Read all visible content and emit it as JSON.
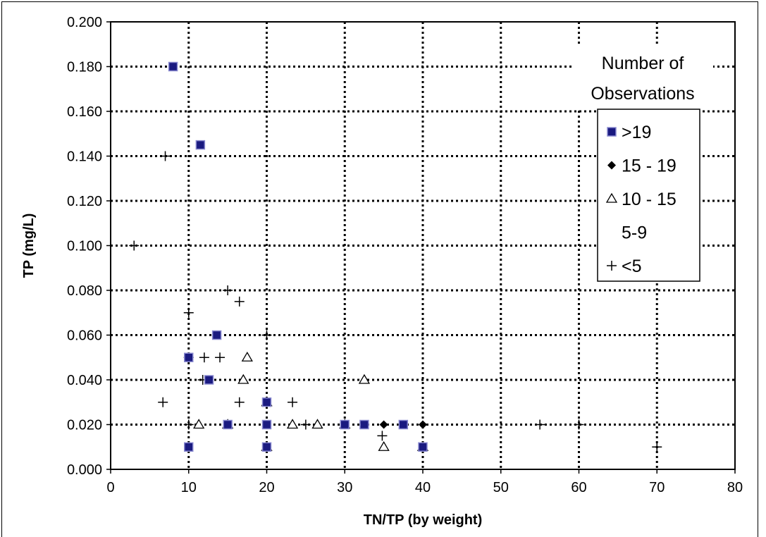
{
  "chart_data": {
    "type": "scatter",
    "xlabel": "TN/TP (by weight)",
    "ylabel": "TP (mg/L)",
    "xlim": [
      0,
      80
    ],
    "ylim": [
      0,
      0.2
    ],
    "x_ticks": [
      "0",
      "10",
      "20",
      "30",
      "40",
      "50",
      "60",
      "70",
      "80"
    ],
    "y_ticks": [
      "0.000",
      "0.020",
      "0.040",
      "0.060",
      "0.080",
      "0.100",
      "0.120",
      "0.140",
      "0.160",
      "0.180",
      "0.200"
    ],
    "grid": true,
    "legend_title": "Number of Observations",
    "legend_title_lines": [
      "Number of",
      "Observations"
    ],
    "legend_placement": "right",
    "series": [
      {
        "name": ">19",
        "marker": "square",
        "color": "#1a1a80",
        "points": [
          [
            8,
            0.18
          ],
          [
            11.5,
            0.145
          ],
          [
            13.6,
            0.06
          ],
          [
            10,
            0.05
          ],
          [
            12.6,
            0.04
          ],
          [
            20,
            0.03
          ],
          [
            15,
            0.02
          ],
          [
            20,
            0.02
          ],
          [
            30,
            0.02
          ],
          [
            32.5,
            0.02
          ],
          [
            37.5,
            0.02
          ],
          [
            10,
            0.01
          ],
          [
            20,
            0.01
          ],
          [
            40,
            0.01
          ]
        ]
      },
      {
        "name": "15 - 19",
        "marker": "diamond",
        "color": "#000000",
        "points": [
          [
            35,
            0.02
          ],
          [
            40,
            0.02
          ]
        ]
      },
      {
        "name": "10 - 15",
        "marker": "triangle",
        "color": "#000000",
        "points": [
          [
            17.5,
            0.05
          ],
          [
            17,
            0.04
          ],
          [
            32.5,
            0.04
          ],
          [
            20,
            0.03
          ],
          [
            11.3,
            0.02
          ],
          [
            15,
            0.02
          ],
          [
            23.3,
            0.02
          ],
          [
            26.5,
            0.02
          ],
          [
            30,
            0.02
          ],
          [
            20,
            0.01
          ],
          [
            35,
            0.01
          ],
          [
            40,
            0.01
          ]
        ]
      },
      {
        "name": "5-9",
        "marker": "none",
        "color": "#000000",
        "points": []
      },
      {
        "name": "<5",
        "marker": "plus",
        "color": "#000000",
        "points": [
          [
            7,
            0.14
          ],
          [
            3,
            0.1
          ],
          [
            15,
            0.08
          ],
          [
            16.5,
            0.075
          ],
          [
            10,
            0.07
          ],
          [
            20,
            0.06
          ],
          [
            10,
            0.05
          ],
          [
            12,
            0.05
          ],
          [
            14,
            0.05
          ],
          [
            11.8,
            0.04
          ],
          [
            6.7,
            0.03
          ],
          [
            16.5,
            0.03
          ],
          [
            23.3,
            0.03
          ],
          [
            10,
            0.02
          ],
          [
            25,
            0.02
          ],
          [
            34.8,
            0.015
          ],
          [
            55,
            0.02
          ],
          [
            60,
            0.02
          ],
          [
            70,
            0.01
          ]
        ]
      }
    ]
  }
}
